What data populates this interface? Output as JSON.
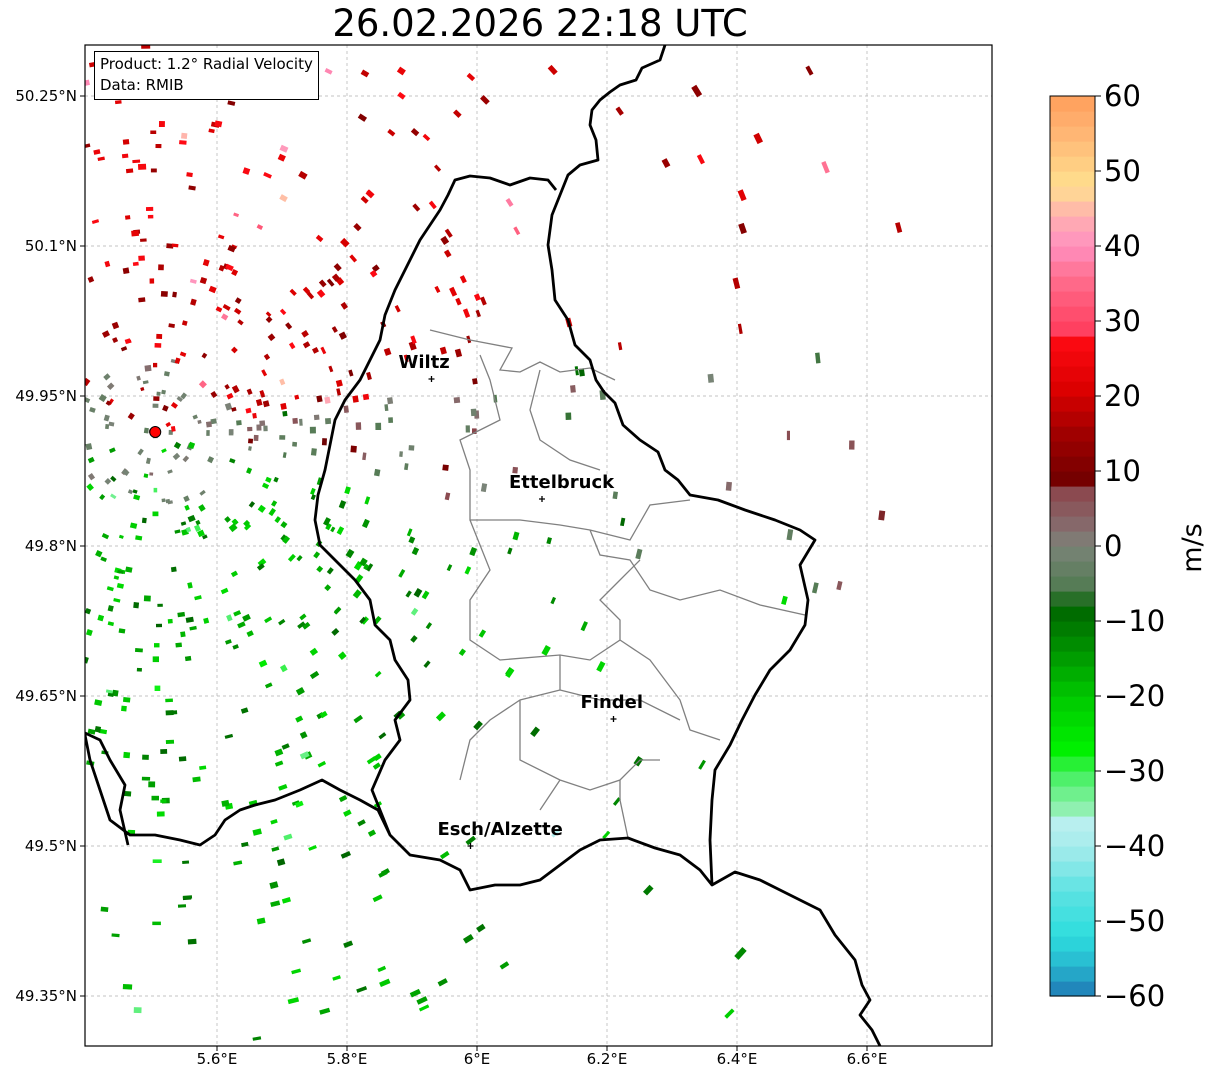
{
  "title": "26.02.2026 22:18 UTC",
  "info": {
    "product": "Product: 1.2° Radial Velocity",
    "source": "Data: RMIB"
  },
  "map": {
    "lat_ticks": [
      {
        "value": 50.25,
        "label": "50.25°N"
      },
      {
        "value": 50.1,
        "label": "50.1°N"
      },
      {
        "value": 49.95,
        "label": "49.95°N"
      },
      {
        "value": 49.8,
        "label": "49.8°N"
      },
      {
        "value": 49.65,
        "label": "49.65°N"
      },
      {
        "value": 49.5,
        "label": "49.5°N"
      },
      {
        "value": 49.35,
        "label": "49.35°N"
      }
    ],
    "lon_ticks": [
      {
        "value": 5.6,
        "label": "5.6°E"
      },
      {
        "value": 5.8,
        "label": "5.8°E"
      },
      {
        "value": 6.0,
        "label": "6°E"
      },
      {
        "value": 6.2,
        "label": "6.2°E"
      },
      {
        "value": 6.4,
        "label": "6.4°E"
      },
      {
        "value": 6.6,
        "label": "6.6°E"
      }
    ],
    "cities": [
      {
        "name": "Wiltz",
        "lon": 5.93,
        "lat": 49.967
      },
      {
        "name": "Ettelbruck",
        "lon": 6.1,
        "lat": 49.847
      },
      {
        "name": "Findel",
        "lon": 6.21,
        "lat": 49.627
      },
      {
        "name": "Esch/Alzette",
        "lon": 5.99,
        "lat": 49.5
      }
    ],
    "radar": {
      "lon": 5.505,
      "lat": 49.914
    },
    "colors": {
      "border": "#000000",
      "canton": "#808080",
      "grid": "#b0b0b0",
      "radar": "#ff0000"
    }
  },
  "colorbar": {
    "unit": "m/s",
    "min": -60,
    "max": 60,
    "tick_labels": [
      "60",
      "50",
      "40",
      "30",
      "20",
      "10",
      "0",
      "−10",
      "−20",
      "−30",
      "−40",
      "−50",
      "−60"
    ],
    "stops": [
      {
        "v": -60,
        "c": "#1f77b4"
      },
      {
        "v": -56,
        "c": "#27b6cf"
      },
      {
        "v": -52,
        "c": "#2ddddd"
      },
      {
        "v": -46,
        "c": "#5de2e2"
      },
      {
        "v": -40,
        "c": "#a6ecec"
      },
      {
        "v": -37,
        "c": "#b8efef"
      },
      {
        "v": -35,
        "c": "#8ff0b0"
      },
      {
        "v": -31,
        "c": "#4ef06a"
      },
      {
        "v": -27,
        "c": "#00f000"
      },
      {
        "v": -20,
        "c": "#00c800"
      },
      {
        "v": -13,
        "c": "#008c00"
      },
      {
        "v": -8,
        "c": "#006400"
      },
      {
        "v": -6,
        "c": "#4f7a4f"
      },
      {
        "v": 0,
        "c": "#7a8478"
      },
      {
        "v": 2,
        "c": "#857070"
      },
      {
        "v": 7,
        "c": "#8b4a50"
      },
      {
        "v": 8,
        "c": "#6e0000"
      },
      {
        "v": 15,
        "c": "#a00000"
      },
      {
        "v": 21,
        "c": "#dc0000"
      },
      {
        "v": 28,
        "c": "#ff0a14"
      },
      {
        "v": 29,
        "c": "#ff4060"
      },
      {
        "v": 36,
        "c": "#ff7090"
      },
      {
        "v": 40,
        "c": "#ff90c0"
      },
      {
        "v": 44,
        "c": "#ffb0b0"
      },
      {
        "v": 48,
        "c": "#ffe08f"
      },
      {
        "v": 56,
        "c": "#ffb070"
      },
      {
        "v": 60,
        "c": "#ff9e5a"
      }
    ]
  }
}
